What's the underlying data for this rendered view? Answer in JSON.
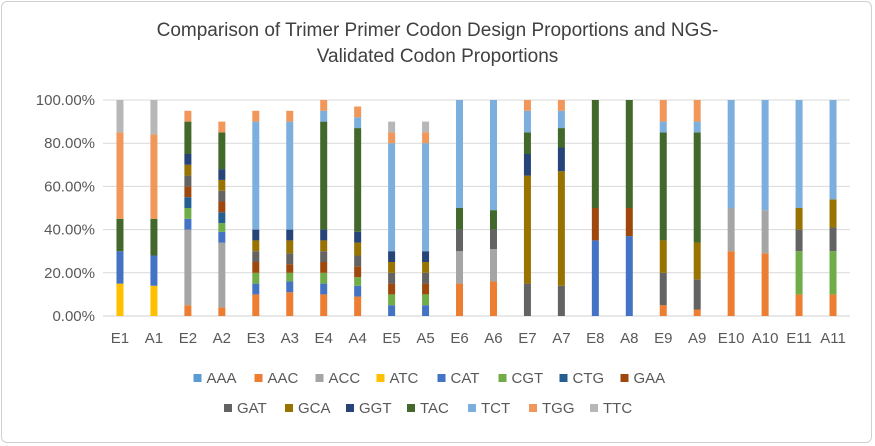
{
  "chart_data": {
    "type": "bar",
    "stacked": true,
    "title_lines": [
      "Comparison of Trimer Primer Codon Design Proportions and NGS-",
      "Validated Codon Proportions"
    ],
    "categories": [
      "E1",
      "A1",
      "E2",
      "A2",
      "E3",
      "A3",
      "E4",
      "A4",
      "E5",
      "A5",
      "E6",
      "A6",
      "E7",
      "A7",
      "E8",
      "A8",
      "E9",
      "A9",
      "E10",
      "A10",
      "E11",
      "A11"
    ],
    "y_ticks": [
      "0.00%",
      "20.00%",
      "40.00%",
      "60.00%",
      "80.00%",
      "100.00%"
    ],
    "ylim": [
      0,
      100
    ],
    "grid": true,
    "legend_position": "bottom",
    "series": [
      {
        "name": "AAA",
        "color": "#5B9BD5",
        "values": [
          0,
          0,
          0,
          0,
          0,
          0,
          0,
          0,
          0,
          0,
          0,
          0,
          0,
          0,
          0,
          0,
          0,
          0,
          0,
          0,
          0,
          0
        ]
      },
      {
        "name": "AAC",
        "color": "#ED7D31",
        "values": [
          0,
          0,
          5,
          4,
          10,
          11,
          10,
          9,
          0,
          0,
          15,
          16,
          0,
          0,
          0,
          0,
          5,
          3,
          30,
          29,
          10,
          10
        ]
      },
      {
        "name": "ACC",
        "color": "#A5A5A5",
        "values": [
          0,
          0,
          35,
          30,
          0,
          0,
          0,
          0,
          0,
          0,
          15,
          15,
          0,
          0,
          0,
          0,
          0,
          0,
          20,
          20,
          0,
          0
        ]
      },
      {
        "name": "ATC",
        "color": "#FFC000",
        "values": [
          15,
          14,
          0,
          0,
          0,
          0,
          0,
          0,
          0,
          0,
          0,
          0,
          0,
          0,
          0,
          0,
          0,
          0,
          0,
          0,
          0,
          0
        ]
      },
      {
        "name": "CAT",
        "color": "#4472C4",
        "values": [
          15,
          14,
          5,
          5,
          5,
          5,
          5,
          5,
          5,
          5,
          0,
          0,
          0,
          0,
          35,
          37,
          0,
          0,
          0,
          0,
          0,
          0
        ]
      },
      {
        "name": "CGT",
        "color": "#70AD47",
        "values": [
          0,
          0,
          5,
          4,
          5,
          4,
          5,
          4,
          5,
          5,
          0,
          0,
          0,
          0,
          0,
          0,
          0,
          0,
          0,
          0,
          20,
          20
        ]
      },
      {
        "name": "CTG",
        "color": "#255E91",
        "values": [
          0,
          0,
          5,
          5,
          0,
          0,
          0,
          0,
          0,
          0,
          0,
          0,
          0,
          0,
          0,
          0,
          0,
          0,
          0,
          0,
          0,
          0
        ]
      },
      {
        "name": "GAA",
        "color": "#9E480E",
        "values": [
          0,
          0,
          5,
          5,
          5,
          4,
          5,
          5,
          5,
          5,
          0,
          0,
          0,
          0,
          15,
          13,
          0,
          0,
          0,
          0,
          0,
          0
        ]
      },
      {
        "name": "GAT",
        "color": "#636363",
        "values": [
          0,
          0,
          5,
          5,
          5,
          5,
          5,
          5,
          5,
          5,
          10,
          9,
          15,
          14,
          0,
          0,
          15,
          14,
          0,
          0,
          10,
          11
        ]
      },
      {
        "name": "GCA",
        "color": "#997300",
        "values": [
          0,
          0,
          5,
          5,
          5,
          6,
          5,
          6,
          5,
          5,
          0,
          0,
          50,
          53,
          0,
          0,
          15,
          17,
          0,
          0,
          10,
          13
        ]
      },
      {
        "name": "GGT",
        "color": "#264478",
        "values": [
          0,
          0,
          5,
          5,
          5,
          5,
          5,
          5,
          5,
          5,
          0,
          0,
          10,
          11,
          0,
          0,
          0,
          0,
          0,
          0,
          0,
          0
        ]
      },
      {
        "name": "TAC",
        "color": "#43682B",
        "values": [
          15,
          17,
          15,
          17,
          0,
          0,
          50,
          48,
          0,
          0,
          10,
          9,
          10,
          9,
          50,
          50,
          50,
          51,
          0,
          0,
          0,
          0
        ]
      },
      {
        "name": "TCT",
        "color": "#7CAFDD",
        "values": [
          0,
          0,
          0,
          0,
          50,
          50,
          5,
          5,
          50,
          50,
          50,
          51,
          10,
          8,
          0,
          0,
          5,
          5,
          50,
          51,
          50,
          46
        ]
      },
      {
        "name": "TGG",
        "color": "#F1975A",
        "values": [
          40,
          39,
          5,
          5,
          5,
          5,
          5,
          5,
          5,
          5,
          0,
          0,
          5,
          5,
          0,
          0,
          10,
          10,
          0,
          0,
          0,
          0
        ]
      },
      {
        "name": "TTC",
        "color": "#B7B7B7",
        "values": [
          15,
          16,
          0,
          0,
          0,
          0,
          0,
          0,
          5,
          5,
          0,
          0,
          0,
          0,
          0,
          0,
          0,
          0,
          0,
          0,
          0,
          0
        ]
      }
    ]
  }
}
